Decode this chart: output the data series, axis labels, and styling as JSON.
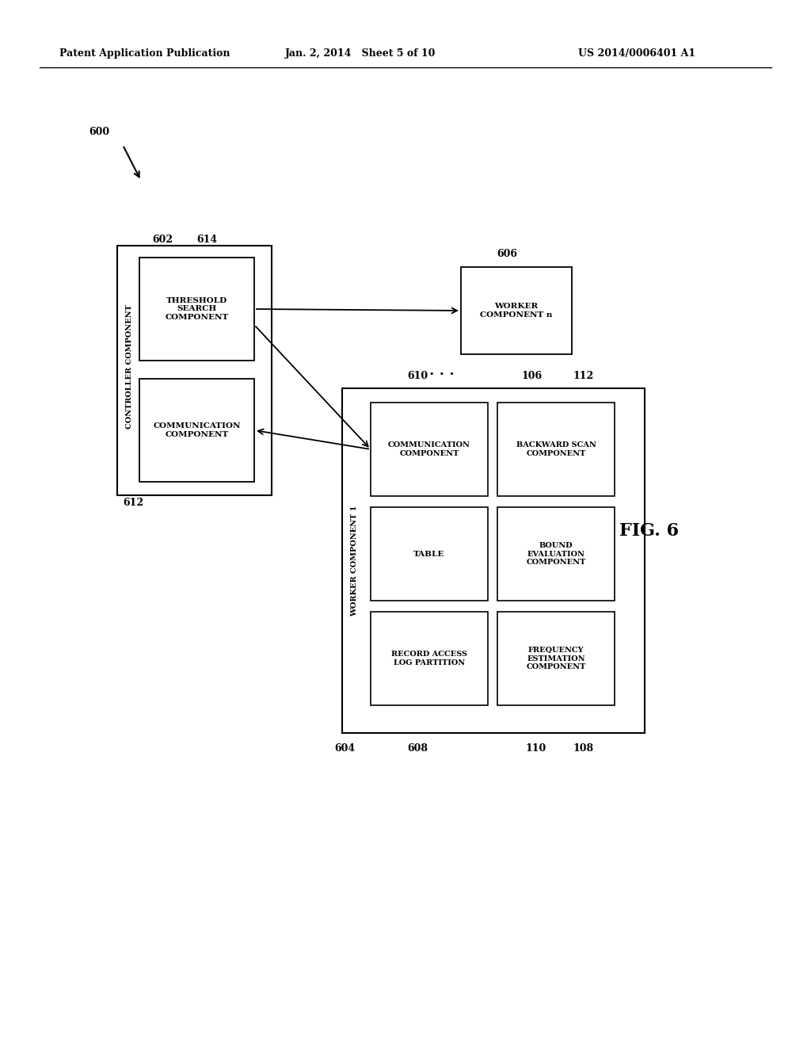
{
  "bg_color": "#ffffff",
  "header_left": "Patent Application Publication",
  "header_mid": "Jan. 2, 2014   Sheet 5 of 10",
  "header_right": "US 2014/0006401 A1",
  "fig_label": "FIG. 6",
  "label_600": "600",
  "label_602": "602",
  "label_604": "604",
  "label_606": "606",
  "label_608": "608",
  "label_610": "610",
  "label_612": "612",
  "label_614": "614",
  "label_106": "106",
  "label_108": "108",
  "label_110": "110",
  "label_112": "112",
  "controller_label": "CONTROLLER COMPONENT",
  "comm_comp_label": "COMMUNICATION\nCOMPONENT",
  "thresh_label": "THRESHOLD\nSEARCH\nCOMPONENT",
  "worker_n_label": "WORKER\nCOMPONENT n",
  "worker1_label": "WORKER COMPONENT 1",
  "comm_comp2_label": "COMMUNICATION\nCOMPONENT",
  "backward_label": "BACKWARD SCAN\nCOMPONENT",
  "bound_label": "BOUND\nEVALUATION\nCOMPONENT",
  "record_label": "RECORD ACCESS\nLOG PARTITION",
  "table_label": "TABLE",
  "freq_label": "FREQUENCY\nESTIMATION\nCOMPONENT"
}
